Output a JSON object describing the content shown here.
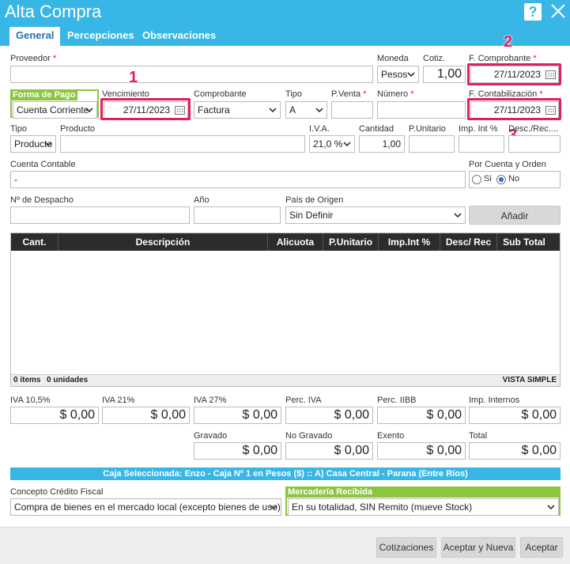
{
  "window": {
    "title": "Alta Compra",
    "help": "?"
  },
  "tabs": [
    {
      "label": "General"
    },
    {
      "label": "Percepciones"
    },
    {
      "label": "Observaciones"
    }
  ],
  "annotations": [
    "1",
    "2",
    "3"
  ],
  "row1": {
    "proveedor_label": "Proveedor",
    "proveedor_value": "",
    "moneda_label": "Moneda",
    "moneda_value": "Pesos",
    "cotiz_label": "Cotiz.",
    "cotiz_value": "1,00",
    "f_comprobante_label": "F. Comprobante",
    "f_comprobante_value": "27/11/2023"
  },
  "row2": {
    "forma_pago_label": "Forma de Pago",
    "forma_pago_value": "Cuenta Corriente",
    "vencimiento_label": "Vencimiento",
    "vencimiento_value": "27/11/2023",
    "comprobante_label": "Comprobante",
    "comprobante_value": "Factura",
    "tipo_label": "Tipo",
    "tipo_value": "A",
    "pventa_label": "P.Venta",
    "pventa_value": "",
    "numero_label": "Número",
    "numero_value": "",
    "f_contab_label": "F. Contabilización",
    "f_contab_value": "27/11/2023"
  },
  "row3": {
    "tipo_label": "Tipo",
    "tipo_value": "Producto",
    "producto_label": "Producto",
    "producto_value": "",
    "iva_label": "I.V.A.",
    "iva_value": "21,0 %",
    "cantidad_label": "Cantidad",
    "cantidad_value": "1,00",
    "punitario_label": "P.Unitario",
    "punitario_value": "",
    "impint_label": "Imp. Int %",
    "impint_value": "",
    "descrec_label": "Desc./Rec....",
    "descrec_value": ""
  },
  "row4": {
    "cuenta_label": "Cuenta Contable",
    "cuenta_value": "-",
    "por_cuenta_label": "Por Cuenta y Orden",
    "si_label": "Si",
    "no_label": "No"
  },
  "row5": {
    "despacho_label": "Nº de Despacho",
    "despacho_value": "",
    "anio_label": "Año",
    "anio_value": "",
    "pais_label": "País de Origen",
    "pais_value": "Sin Definir",
    "anadir_label": "Añadir"
  },
  "table": {
    "columns": [
      "Cant.",
      "Descripción",
      "Alicuota",
      "P.Unitario",
      "Imp.Int %",
      "Desc/ Rec",
      "Sub Total"
    ],
    "footer_items": "0 items",
    "footer_units": "0 unidades",
    "footer_view": "VISTA SIMPLE"
  },
  "totals_row1": [
    {
      "label": "IVA 10,5%",
      "value": "$ 0,00"
    },
    {
      "label": "IVA 21%",
      "value": "$ 0,00"
    },
    {
      "label": "IVA 27%",
      "value": "$ 0,00"
    },
    {
      "label": "Perc. IVA",
      "value": "$ 0,00"
    },
    {
      "label": "Perc. IIBB",
      "value": "$ 0,00"
    },
    {
      "label": "Imp. Internos",
      "value": "$ 0,00"
    }
  ],
  "totals_row2": [
    {
      "label": "Gravado",
      "value": "$ 0,00"
    },
    {
      "label": "No Gravado",
      "value": "$ 0,00"
    },
    {
      "label": "Exento",
      "value": "$ 0,00"
    },
    {
      "label": "Total",
      "value": "$ 0,00"
    }
  ],
  "caja_bar": "Caja Seleccionada: Enzo - Caja Nº 1 en Pesos ($) :: A) Casa Central - Parana (Entre Ríos)",
  "bottom": {
    "concepto_label": "Concepto Crédito Fiscal",
    "concepto_value": "Compra de bienes en el mercado local (excepto bienes de uso)",
    "mercaderia_label": "Mercadería Recibida",
    "mercaderia_value": "En su totalidad, SIN Remito (mueve Stock)"
  },
  "footer": {
    "cotizaciones": "Cotizaciones",
    "aceptar_nueva": "Aceptar y Nueva",
    "aceptar": "Aceptar"
  },
  "colors": {
    "accent": "#38b6e6",
    "highlight": "#e0205a",
    "green": "#8cc63f"
  }
}
